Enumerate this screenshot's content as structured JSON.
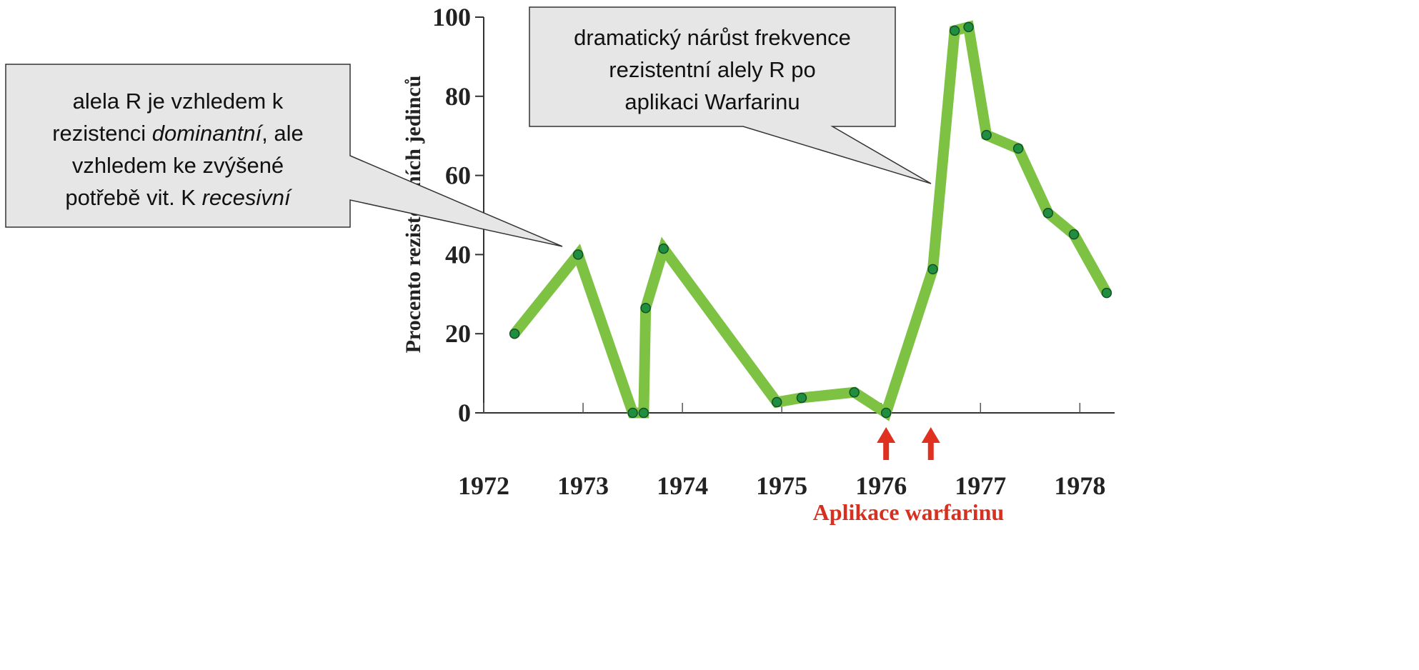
{
  "chart_data": {
    "type": "line",
    "y_label": "Procento rezistentních jedinců",
    "x_label": "Aplikace warfarinu",
    "x": [
      1972.31,
      1972.95,
      1973.5,
      1973.61,
      1973.63,
      1973.81,
      1974.95,
      1975.2,
      1975.73,
      1976.05,
      1976.52,
      1976.74,
      1976.88,
      1977.06,
      1977.38,
      1977.68,
      1977.94,
      1978.27
    ],
    "values": [
      20,
      40,
      0,
      0,
      26.5,
      41.5,
      2.7,
      3.8,
      5.2,
      0,
      36.3,
      96.6,
      97.5,
      70.2,
      66.8,
      50.5,
      45.1,
      30.3
    ],
    "color": "#7dc242",
    "marker_color": "#1f8f3f",
    "xlim": [
      1972,
      1978.35
    ],
    "xticks": [
      1972,
      1973,
      1974,
      1975,
      1976,
      1977,
      1978
    ],
    "ylim": [
      0,
      100
    ],
    "yticks": [
      0,
      20,
      40,
      60,
      80,
      100
    ],
    "arrows_x": [
      1976.05,
      1976.5
    ],
    "arrow_color": "#e03020"
  },
  "left_callout": {
    "lines": [
      [
        "alela R je vzhledem k"
      ],
      [
        "rezistenci ",
        "dominantní",
        ", ale"
      ],
      [
        "vzhledem ke zvýšené"
      ],
      [
        "potřebě vit. K ",
        "recesivní"
      ]
    ]
  },
  "right_callout": {
    "lines": [
      "dramatický nárůst frekvence",
      "rezistentní alely R po",
      "aplikaci Warfarinu"
    ]
  }
}
